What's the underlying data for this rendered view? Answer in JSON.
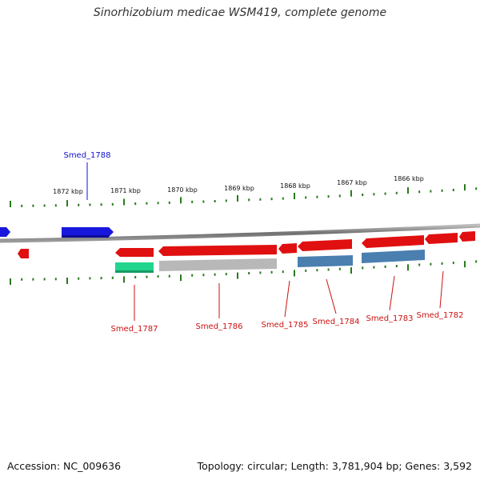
{
  "title": "Sinorhizobium medicae WSM419, complete genome",
  "footer": {
    "accession": "Accession: NC_009636",
    "summary": "Topology: circular; Length: 3,781,904 bp; Genes: 3,592"
  },
  "colors": {
    "tick": "#2a7a1e",
    "backbone": "#888888",
    "forward_gene": "#e01010",
    "highlight_gene": "#1818dd",
    "protein_feature": "#4a7fb0",
    "rna_feature": "#22d58f",
    "other_feature": "#b8b8b8",
    "label_red": "#cc1111",
    "label_blue": "#1111cc"
  },
  "scale": {
    "unit": "kbp",
    "labels": [
      "1872 kbp",
      "1871 kbp",
      "1870 kbp",
      "1869 kbp",
      "1868 kbp",
      "1867 kbp",
      "1866 kbp"
    ]
  },
  "genes": [
    {
      "name": "Smed_1788",
      "label_color": "blue",
      "feature_track": "none"
    },
    {
      "name": "Smed_1787",
      "label_color": "red",
      "feature_track": "rna"
    },
    {
      "name": "Smed_1786",
      "label_color": "red",
      "feature_track": "other"
    },
    {
      "name": "Smed_1785",
      "label_color": "red",
      "feature_track": "none"
    },
    {
      "name": "Smed_1784",
      "label_color": "red",
      "feature_track": "protein"
    },
    {
      "name": "Smed_1783",
      "label_color": "red",
      "feature_track": "protein"
    },
    {
      "name": "Smed_1782",
      "label_color": "red",
      "feature_track": "none"
    }
  ]
}
